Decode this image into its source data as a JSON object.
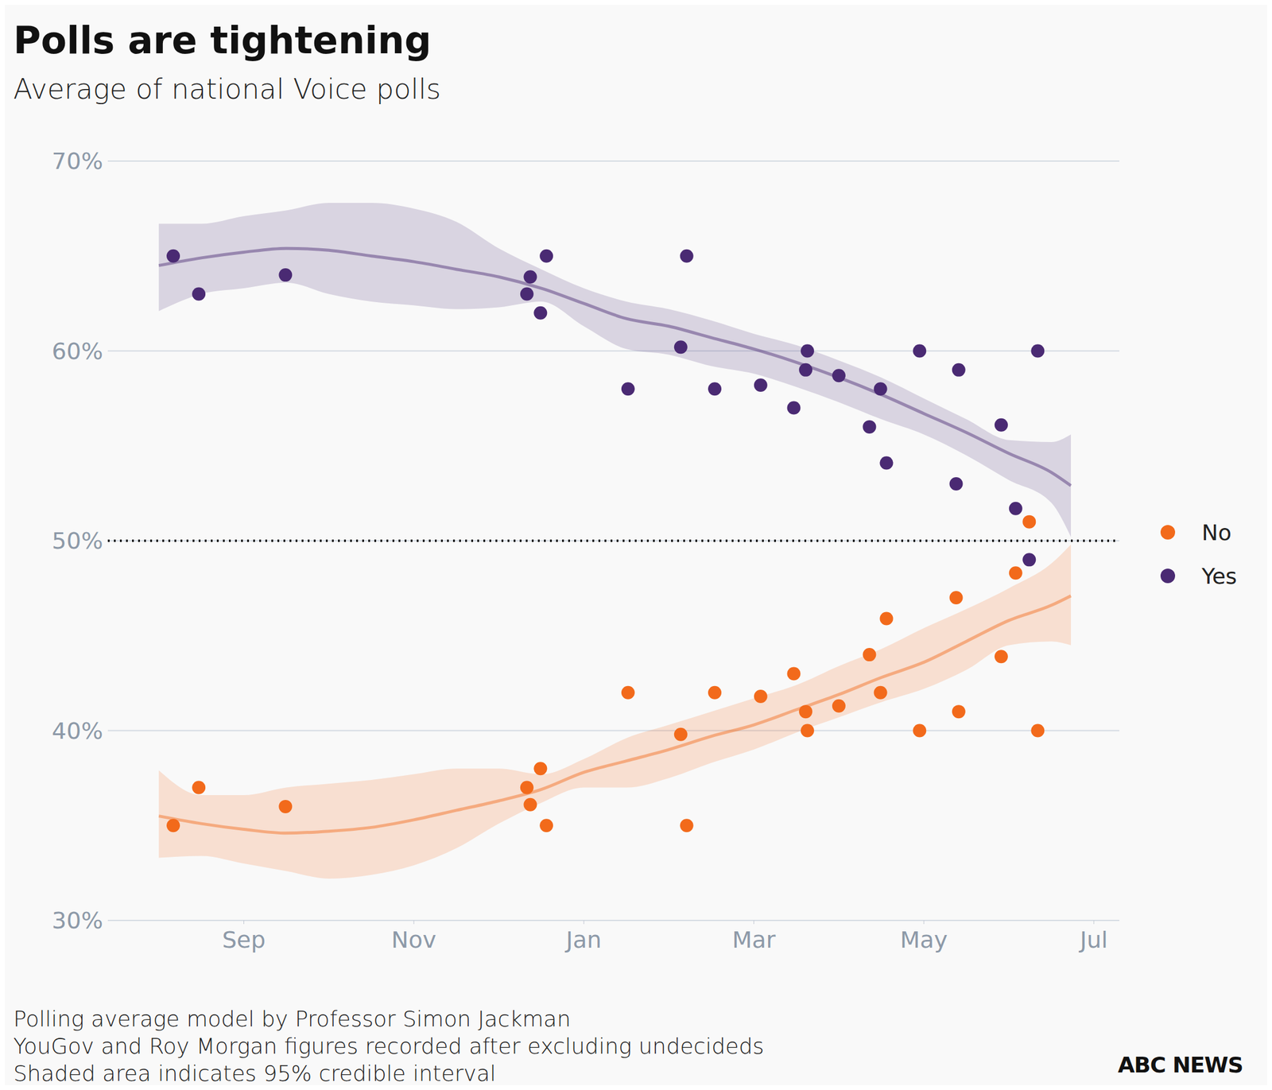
{
  "chart_data": {
    "type": "scatter",
    "title": "Polls are tightening",
    "subtitle": "Average of national Voice polls",
    "notes": [
      "Polling average model by Professor Simon Jackman",
      "YouGov and Roy Morgan figures recorded after excluding undecideds",
      "Shaded area indicates 95% credible interval"
    ],
    "logo": "ABC NEWS",
    "xlim": [
      7.4,
      19.3
    ],
    "xticks": [
      {
        "value": 9,
        "label": "Sep"
      },
      {
        "value": 11,
        "label": "Nov"
      },
      {
        "value": 13,
        "label": "Jan"
      },
      {
        "value": 15,
        "label": "Mar"
      },
      {
        "value": 17,
        "label": "May"
      },
      {
        "value": 19,
        "label": "Jul"
      }
    ],
    "ylim": [
      30,
      70
    ],
    "yticks": [
      {
        "value": 30,
        "label": "30%"
      },
      {
        "value": 40,
        "label": "40%"
      },
      {
        "value": 50,
        "label": "50%"
      },
      {
        "value": 60,
        "label": "60%"
      },
      {
        "value": 70,
        "label": "70%"
      }
    ],
    "grid": true,
    "legend": "right",
    "threshold": {
      "value": 50,
      "line_style": "dotted"
    },
    "series": [
      {
        "name": "No",
        "color": "#f26a1b",
        "marker": "circle",
        "line_style": "solid",
        "x": [
          8.17,
          8.47,
          9.49,
          12.33,
          12.37,
          12.49,
          12.56,
          13.52,
          14.14,
          14.21,
          14.54,
          15.08,
          15.47,
          15.61,
          15.63,
          16.0,
          16.36,
          16.49,
          16.56,
          16.95,
          17.38,
          17.41,
          17.91,
          18.08,
          18.24,
          18.34
        ],
        "values": [
          35.0,
          37.0,
          36.0,
          37.0,
          36.1,
          38.0,
          35.0,
          42.0,
          39.8,
          35.0,
          42.0,
          41.8,
          43.0,
          41.0,
          40.0,
          41.3,
          44.0,
          42.0,
          45.9,
          40.0,
          47.0,
          41.0,
          43.9,
          48.3,
          51.0,
          40.0
        ],
        "trend": {
          "x": [
            8.0,
            8.5,
            9.0,
            9.5,
            10.0,
            10.5,
            11.0,
            11.5,
            12.0,
            12.5,
            13.0,
            13.5,
            14.0,
            14.5,
            15.0,
            15.5,
            16.0,
            16.5,
            17.0,
            17.5,
            18.0,
            18.5,
            18.73
          ],
          "values": [
            35.5,
            35.1,
            34.8,
            34.6,
            34.7,
            34.9,
            35.3,
            35.8,
            36.3,
            36.9,
            37.8,
            38.4,
            39.0,
            39.7,
            40.3,
            41.1,
            41.9,
            42.8,
            43.6,
            44.7,
            45.8,
            46.6,
            47.1
          ],
          "lower": [
            33.3,
            33.4,
            33.0,
            32.6,
            32.2,
            32.4,
            32.9,
            33.8,
            35.1,
            36.2,
            37.0,
            37.0,
            37.5,
            38.3,
            39.0,
            39.9,
            40.7,
            41.5,
            42.2,
            43.2,
            44.5,
            44.7,
            44.5
          ],
          "upper": [
            37.9,
            36.6,
            36.6,
            37.0,
            37.2,
            37.4,
            37.7,
            38.0,
            38.0,
            37.7,
            38.5,
            39.6,
            40.3,
            41.0,
            41.7,
            42.4,
            43.4,
            44.3,
            45.4,
            46.4,
            47.5,
            48.8,
            49.8
          ]
        }
      },
      {
        "name": "Yes",
        "color": "#4a2a73",
        "marker": "circle",
        "line_style": "solid",
        "x": [
          8.17,
          8.47,
          9.49,
          12.33,
          12.37,
          12.49,
          12.56,
          13.52,
          14.14,
          14.21,
          14.54,
          15.08,
          15.47,
          15.61,
          15.63,
          16.0,
          16.36,
          16.49,
          16.56,
          16.95,
          17.38,
          17.41,
          17.91,
          18.08,
          18.24,
          18.34
        ],
        "values": [
          65.0,
          63.0,
          64.0,
          63.0,
          63.9,
          62.0,
          65.0,
          58.0,
          60.2,
          65.0,
          58.0,
          58.2,
          57.0,
          59.0,
          60.0,
          58.7,
          56.0,
          58.0,
          54.1,
          60.0,
          53.0,
          59.0,
          56.1,
          51.7,
          49.0,
          60.0
        ],
        "trend": {
          "x": [
            8.0,
            8.5,
            9.0,
            9.5,
            10.0,
            10.5,
            11.0,
            11.5,
            12.0,
            12.5,
            13.0,
            13.5,
            14.0,
            14.5,
            15.0,
            15.5,
            16.0,
            16.5,
            17.0,
            17.5,
            18.0,
            18.5,
            18.73
          ],
          "values": [
            64.5,
            64.9,
            65.2,
            65.4,
            65.3,
            65.0,
            64.7,
            64.3,
            63.9,
            63.3,
            62.5,
            61.7,
            61.3,
            60.7,
            60.1,
            59.4,
            58.6,
            57.7,
            56.7,
            55.7,
            54.6,
            53.6,
            52.9
          ],
          "lower": [
            62.1,
            63.0,
            63.3,
            63.6,
            63.0,
            62.6,
            62.4,
            62.2,
            62.3,
            62.6,
            61.3,
            60.1,
            59.8,
            59.2,
            58.8,
            58.1,
            57.3,
            56.4,
            55.6,
            54.5,
            53.2,
            52.0,
            50.2
          ],
          "upper": [
            66.7,
            66.7,
            67.1,
            67.4,
            67.8,
            67.8,
            67.5,
            66.8,
            65.4,
            64.3,
            63.3,
            62.6,
            62.2,
            61.6,
            60.9,
            60.3,
            59.5,
            58.6,
            57.5,
            56.4,
            55.3,
            55.2,
            55.6
          ]
        }
      }
    ]
  }
}
